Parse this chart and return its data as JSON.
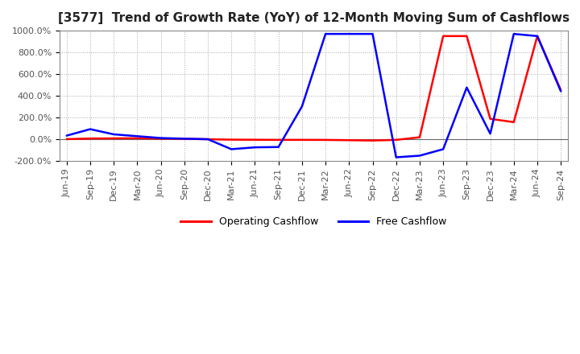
{
  "title": "[3577]  Trend of Growth Rate (YoY) of 12-Month Moving Sum of Cashflows",
  "ylim": [
    -200,
    1000
  ],
  "yticks": [
    -200,
    0,
    200,
    400,
    600,
    800,
    1000
  ],
  "ytick_labels": [
    "-200.0%",
    "0.0%",
    "200.0%",
    "400.0%",
    "600.0%",
    "800.0%",
    "1000.0%"
  ],
  "background_color": "#ffffff",
  "grid_color": "#aaaaaa",
  "legend_labels": [
    "Operating Cashflow",
    "Free Cashflow"
  ],
  "legend_colors": [
    "#ff0000",
    "#0000ff"
  ],
  "xtick_labels": [
    "Jun-19",
    "Sep-19",
    "Dec-19",
    "Mar-20",
    "Jun-20",
    "Sep-20",
    "Dec-20",
    "Mar-21",
    "Jun-21",
    "Sep-21",
    "Dec-21",
    "Mar-22",
    "Jun-22",
    "Sep-22",
    "Dec-22",
    "Mar-23",
    "Jun-23",
    "Sep-23",
    "Dec-23",
    "Mar-24",
    "Jun-24",
    "Sep-24"
  ],
  "operating_cashflow": [
    -2.0,
    3.5,
    5.0,
    6.0,
    3.0,
    1.0,
    -3.0,
    -7.0,
    -8.0,
    -9.0,
    -9.0,
    -9.5,
    -12.0,
    -15.0,
    -9.0,
    15.0,
    950.0,
    950.0,
    185.0,
    155.0,
    950.0,
    450.0
  ],
  "free_cashflow": [
    30.0,
    90.0,
    42.0,
    25.0,
    8.0,
    2.0,
    -3.0,
    -95.0,
    -78.0,
    -75.0,
    300.0,
    970.0,
    970.0,
    970.0,
    -170.0,
    -155.0,
    -95.0,
    475.0,
    48.0,
    970.0,
    950.0,
    440.0
  ],
  "title_fontsize": 11,
  "tick_fontsize": 8,
  "legend_fontsize": 9,
  "line_width": 1.8
}
